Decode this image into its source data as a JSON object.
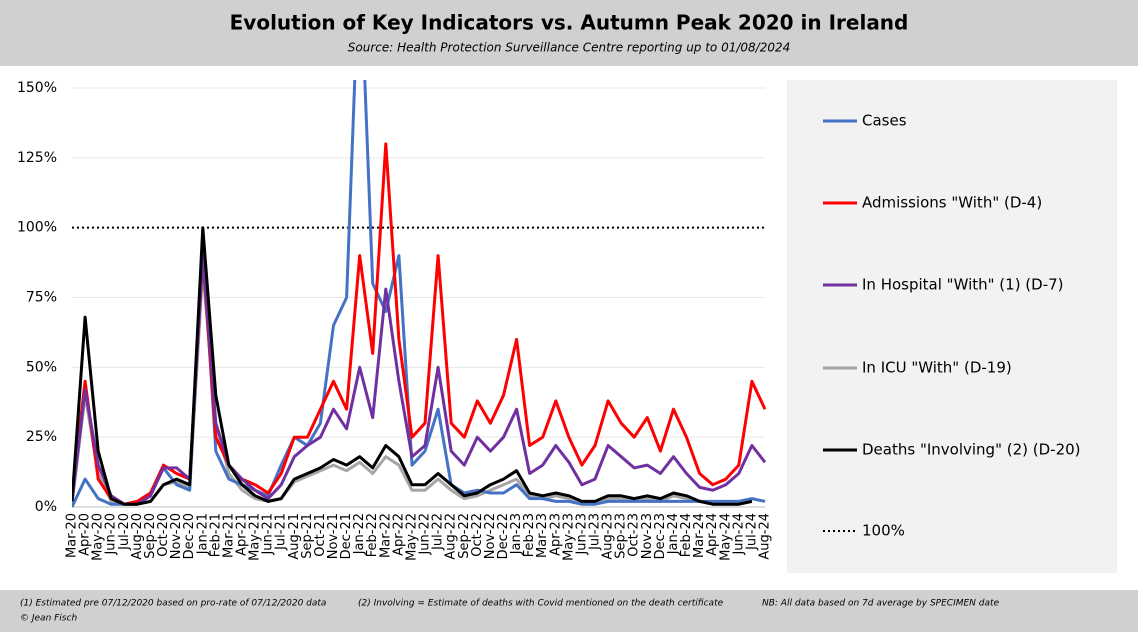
{
  "chart_data": {
    "type": "line",
    "title": "Evolution of Key Indicators vs. Autumn Peak 2020 in Ireland",
    "subtitle": "Source: Health Protection Surveillance Centre reporting up to 01/08/2024",
    "categories": [
      "Mar-20",
      "Apr-20",
      "May-20",
      "Jun-20",
      "Jul-20",
      "Aug-20",
      "Sep-20",
      "Oct-20",
      "Nov-20",
      "Dec-20",
      "Jan-21",
      "Feb-21",
      "Mar-21",
      "Apr-21",
      "May-21",
      "Jun-21",
      "Jul-21",
      "Aug-21",
      "Sep-21",
      "Oct-21",
      "Nov-21",
      "Dec-21",
      "Jan-22",
      "Feb-22",
      "Mar-22",
      "Apr-22",
      "May-22",
      "Jun-22",
      "Jul-22",
      "Aug-22",
      "Sep-22",
      "Oct-22",
      "Nov-22",
      "Dec-22",
      "Jan-23",
      "Feb-23",
      "Mar-23",
      "Apr-23",
      "May-23",
      "Jun-23",
      "Jul-23",
      "Aug-23",
      "Sep-23",
      "Oct-23",
      "Nov-23",
      "Dec-23",
      "Jan-24",
      "Feb-24",
      "Mar-24",
      "Apr-24",
      "May-24",
      "Jun-24",
      "Jul-24",
      "Aug-24"
    ],
    "series": [
      {
        "name": "Cases",
        "color": "#4472c4",
        "values": [
          0,
          10,
          3,
          1,
          1,
          2,
          5,
          14,
          8,
          6,
          95,
          20,
          10,
          8,
          6,
          4,
          15,
          25,
          22,
          30,
          65,
          75,
          200,
          80,
          70,
          90,
          15,
          20,
          35,
          8,
          5,
          6,
          5,
          5,
          8,
          3,
          3,
          2,
          2,
          1,
          1,
          2,
          2,
          2,
          2,
          2,
          2,
          2,
          2,
          2,
          2,
          2,
          3,
          2
        ]
      },
      {
        "name": "Admissions \"With\" (D-4)",
        "color": "#ff0000",
        "values": [
          5,
          45,
          10,
          3,
          1,
          2,
          5,
          15,
          12,
          10,
          90,
          25,
          15,
          10,
          8,
          5,
          12,
          25,
          25,
          35,
          45,
          35,
          90,
          55,
          130,
          60,
          25,
          30,
          90,
          30,
          25,
          38,
          30,
          40,
          60,
          22,
          25,
          38,
          25,
          15,
          22,
          38,
          30,
          25,
          32,
          20,
          35,
          25,
          12,
          8,
          10,
          15,
          45,
          35
        ]
      },
      {
        "name": "In Hospital \"With\" (1) (D-7)",
        "color": "#7030a0",
        "values": [
          2,
          42,
          15,
          4,
          1,
          1,
          4,
          14,
          14,
          10,
          90,
          30,
          15,
          10,
          6,
          3,
          8,
          18,
          22,
          25,
          35,
          28,
          50,
          32,
          78,
          45,
          18,
          22,
          50,
          20,
          15,
          25,
          20,
          25,
          35,
          12,
          15,
          22,
          16,
          8,
          10,
          22,
          18,
          14,
          15,
          12,
          18,
          12,
          7,
          6,
          8,
          12,
          22,
          16
        ]
      },
      {
        "name": "In ICU \"With\" (D-19)",
        "color": "#a6a6a6",
        "values": [
          1,
          40,
          12,
          2,
          1,
          1,
          2,
          8,
          9,
          7,
          85,
          30,
          12,
          6,
          3,
          2,
          3,
          9,
          11,
          13,
          15,
          13,
          16,
          12,
          18,
          15,
          6,
          6,
          10,
          6,
          3,
          4,
          6,
          8,
          10,
          4,
          3,
          4,
          3,
          2,
          2,
          3,
          3,
          2,
          3,
          2,
          4,
          3,
          2,
          1,
          1,
          1,
          2,
          null
        ]
      },
      {
        "name": "Deaths \"Involving\" (2) (D-20)",
        "color": "#000000",
        "values": [
          2,
          68,
          20,
          3,
          1,
          1,
          2,
          8,
          10,
          8,
          100,
          40,
          15,
          8,
          4,
          2,
          3,
          10,
          12,
          14,
          17,
          15,
          18,
          14,
          22,
          18,
          8,
          8,
          12,
          8,
          4,
          5,
          8,
          10,
          13,
          5,
          4,
          5,
          4,
          2,
          2,
          4,
          4,
          3,
          4,
          3,
          5,
          4,
          2,
          1,
          1,
          1,
          2,
          null
        ]
      }
    ],
    "reference_line": {
      "name": "100%",
      "value": 100
    },
    "ylim": [
      0,
      150
    ],
    "yticks": [
      {
        "value": 0,
        "label": "0%"
      },
      {
        "value": 25,
        "label": "25%"
      },
      {
        "value": 50,
        "label": "50%"
      },
      {
        "value": 75,
        "label": "75%"
      },
      {
        "value": 100,
        "label": "100%"
      },
      {
        "value": 125,
        "label": "125%"
      },
      {
        "value": 150,
        "label": "150%"
      }
    ],
    "grid": true,
    "legend": "right",
    "footnotes": [
      "(1) Estimated pre 07/12/2020 based on pro-rate of 07/12/2020 data",
      "(2) Involving = Estimate of deaths with Covid mentioned on the death certificate",
      "NB: All data based on 7d average by SPECIMEN date"
    ],
    "credit": "© Jean Fisch"
  }
}
